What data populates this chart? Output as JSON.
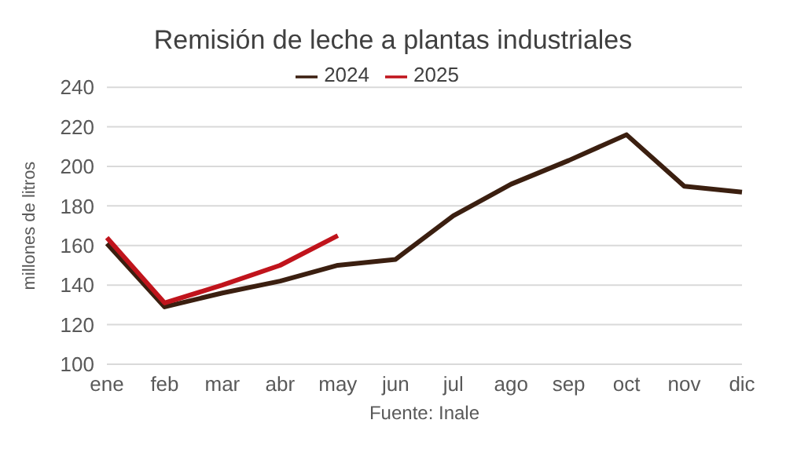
{
  "chart_data": {
    "type": "line",
    "title": "Remisión de leche a plantas industriales",
    "ylabel": "millones de litros",
    "annotations": [
      "Fuente: Inale"
    ],
    "categories": [
      "ene",
      "feb",
      "mar",
      "abr",
      "may",
      "jun",
      "jul",
      "ago",
      "sep",
      "oct",
      "nov",
      "dic"
    ],
    "series": [
      {
        "name": "2024",
        "color": "#3b1f10",
        "values": [
          161,
          129,
          136,
          142,
          150,
          153,
          175,
          191,
          203,
          216,
          190,
          187
        ]
      },
      {
        "name": "2025",
        "color": "#c0141c",
        "values": [
          164,
          131,
          140,
          150,
          165,
          null,
          null,
          null,
          null,
          null,
          null,
          null
        ]
      }
    ],
    "ylim": [
      100,
      240
    ],
    "yticks": [
      100,
      120,
      140,
      160,
      180,
      200,
      220,
      240
    ],
    "grid": "y",
    "legend": "top",
    "marker": "none",
    "line_style": "solid"
  }
}
